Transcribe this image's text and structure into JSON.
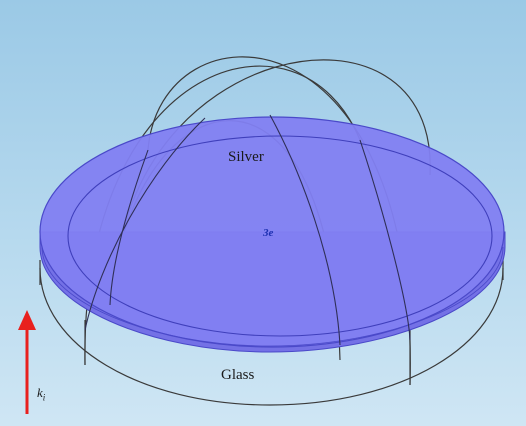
{
  "labels": {
    "silver": "Silver",
    "glass": "Glass",
    "wave_vector": "k",
    "wave_vector_sub": "i",
    "center_marker": "3e"
  },
  "colors": {
    "background": "#b3d7ee",
    "silver_fill": "#7f7bf1",
    "silver_edge": "#4a49c9",
    "wireframe": "#333333",
    "arrow": "#e8201e"
  },
  "icons": {
    "arrow": "up-arrow-icon"
  }
}
